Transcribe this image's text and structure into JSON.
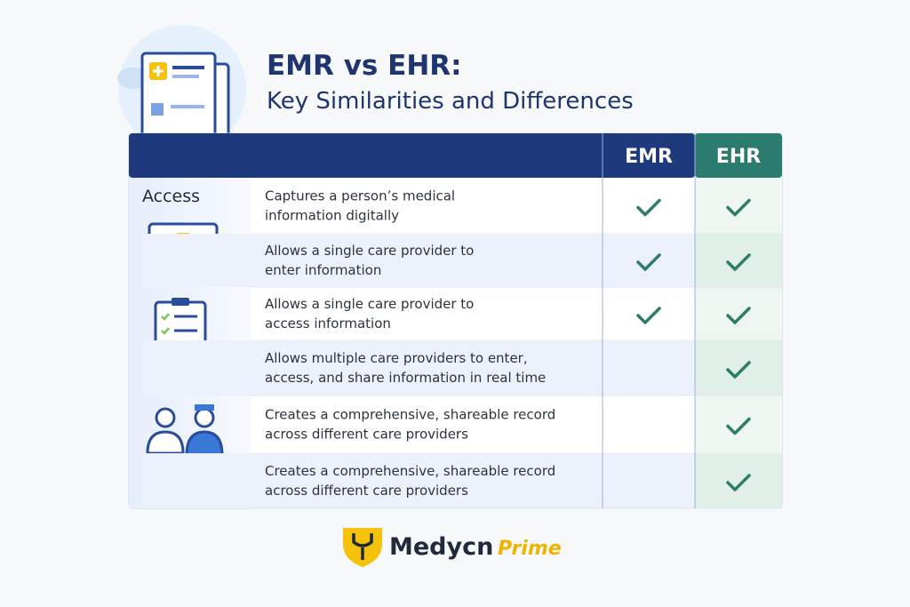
{
  "header": {
    "title": "EMR vs EHR:",
    "subtitle": "Key Similarities and Differences"
  },
  "table": {
    "columns": [
      "EMR",
      "EHR"
    ],
    "section_label": "Access",
    "rows": [
      {
        "text": [
          "Captures a person’s medical",
          "information digitally"
        ],
        "emr": true,
        "ehr": true
      },
      {
        "text": [
          "Allows a single care provider to",
          "enter information"
        ],
        "emr": true,
        "ehr": true
      },
      {
        "text": [
          "Allows a single care provider to",
          "access information"
        ],
        "emr": true,
        "ehr": true
      },
      {
        "text": [
          "Allows multiple care providers to enter,",
          "access, and share information in real time"
        ],
        "emr": false,
        "ehr": true
      },
      {
        "text": [
          "Creates a comprehensive, shareable record",
          "across different care providers"
        ],
        "emr": false,
        "ehr": true
      },
      {
        "text": [
          "Creates a comprehensive, shareable record",
          "across different care providers"
        ],
        "emr": false,
        "ehr": true
      }
    ]
  },
  "brand": {
    "name": "Medycn",
    "suffix": "Prime"
  }
}
